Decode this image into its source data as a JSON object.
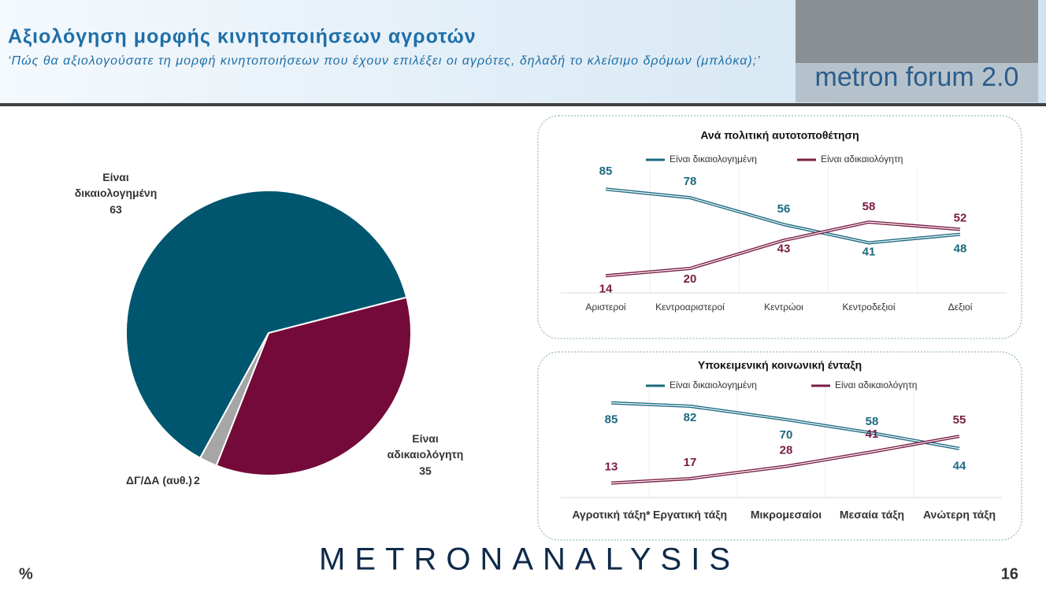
{
  "header": {
    "title": "Αξιολόγηση μορφής κινητοποιήσεων αγροτών",
    "subtitle": "‘Πώς θα αξιολογούσατε τη μορφή κινητοποιήσεων που έχουν επιλέξει οι αγρότες, δηλαδή το κλείσιμο δρόμων (μπλόκα);’",
    "logo": "metron forum 2.0"
  },
  "chart_data": [
    {
      "type": "pie",
      "categories": [
        "Είναι δικαιολογημένη",
        "Είναι αδικαιολόγητη",
        "ΔΓ/ΔΑ (αυθ.)"
      ],
      "values": [
        63,
        35,
        2
      ],
      "colors": [
        "#00566e",
        "#730a3a",
        "#a6a6a6"
      ]
    },
    {
      "type": "line",
      "title": "Ανά πολιτική αυτοτοποθέτηση",
      "categories": [
        "Αριστεροί",
        "Κεντροαριστεροί",
        "Κεντρώοι",
        "Κεντροδεξιοί",
        "Δεξιοί"
      ],
      "series": [
        {
          "name": "Είναι δικαιολογημένη",
          "color": "#1b6a80",
          "values": [
            85,
            78,
            56,
            41,
            48
          ]
        },
        {
          "name": "Είναι αδικαιολόγητη",
          "color": "#7a1d45",
          "values": [
            14,
            20,
            43,
            58,
            52
          ]
        }
      ]
    },
    {
      "type": "line",
      "title": "Υποκειμενική κοινωνική ένταξη",
      "categories": [
        "Αγροτική τάξη*",
        "Εργατική τάξη",
        "Μικρομεσαίοι",
        "Μεσαία τάξη",
        "Ανώτερη τάξη"
      ],
      "series": [
        {
          "name": "Είναι δικαιολογημένη",
          "color": "#1b6a80",
          "values": [
            85,
            82,
            70,
            58,
            44
          ]
        },
        {
          "name": "Είναι αδικαιολόγητη",
          "color": "#7a1d45",
          "values": [
            13,
            17,
            28,
            41,
            55
          ]
        }
      ]
    }
  ],
  "footer": {
    "unit": "%",
    "brand": "METRONANALYSIS",
    "page": "16"
  }
}
